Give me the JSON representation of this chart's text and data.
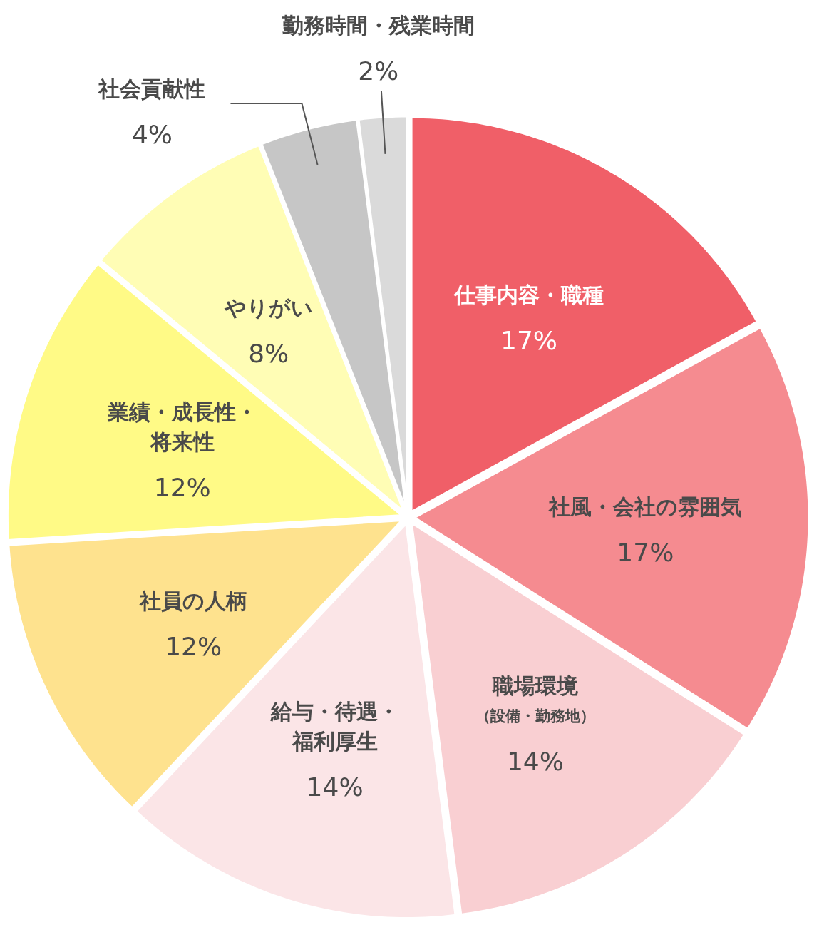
{
  "chart_data": {
    "type": "pie",
    "categories": [
      "仕事内容・職種",
      "社風・会社の雰囲気",
      "職場環境（設備・勤務地）",
      "給与・待遇・福利厚生",
      "社員の人柄",
      "業績・成長性・将来性",
      "やりがい",
      "社会貢献性",
      "勤務時間・残業時間"
    ],
    "values": [
      17,
      17,
      14,
      14,
      12,
      12,
      8,
      4,
      2
    ],
    "value_labels": [
      "17%",
      "17%",
      "14%",
      "14%",
      "12%",
      "12%",
      "8%",
      "4%",
      "2%"
    ],
    "colors": [
      "#f05f68",
      "#f58b90",
      "#f9cfd2",
      "#fbe5e7",
      "#fee28e",
      "#fffa86",
      "#fffdb5",
      "#c6c6c6",
      "#dadada"
    ]
  }
}
